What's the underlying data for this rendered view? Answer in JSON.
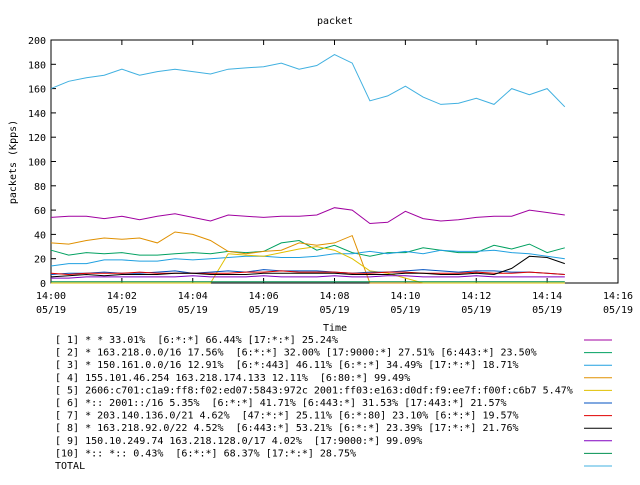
{
  "chart_data": {
    "type": "line",
    "title": "packet",
    "xlabel": "Time",
    "ylabel": "packets (Kpps)",
    "ylim": [
      0,
      200
    ],
    "yticks": [
      0,
      20,
      40,
      60,
      80,
      100,
      120,
      140,
      160,
      180,
      200
    ],
    "xlim": [
      "14:00",
      "14:16"
    ],
    "xticks": [
      {
        "time": "14:00",
        "date": "05/19"
      },
      {
        "time": "14:02",
        "date": "05/19"
      },
      {
        "time": "14:04",
        "date": "05/19"
      },
      {
        "time": "14:06",
        "date": "05/19"
      },
      {
        "time": "14:08",
        "date": "05/19"
      },
      {
        "time": "14:10",
        "date": "05/19"
      },
      {
        "time": "14:12",
        "date": "05/19"
      },
      {
        "time": "14:14",
        "date": "05/19"
      },
      {
        "time": "14:16",
        "date": "05/19"
      }
    ],
    "x": [
      "14:00:00",
      "14:00:30",
      "14:01:00",
      "14:01:30",
      "14:02:00",
      "14:02:30",
      "14:03:00",
      "14:03:30",
      "14:04:00",
      "14:04:30",
      "14:05:00",
      "14:05:30",
      "14:06:00",
      "14:06:30",
      "14:07:00",
      "14:07:30",
      "14:08:00",
      "14:08:30",
      "14:09:00",
      "14:09:30",
      "14:10:00",
      "14:10:30",
      "14:11:00",
      "14:11:30",
      "14:12:00",
      "14:12:30",
      "14:13:00",
      "14:13:30",
      "14:14:00",
      "14:14:30"
    ],
    "series": [
      {
        "name": "[ 1] * * 33.01%  [6:*:*] 66.44% [17:*:*] 25.24%",
        "color": "#a000a0",
        "values": [
          54,
          55,
          55,
          53,
          55,
          52,
          55,
          57,
          54,
          51,
          56,
          55,
          54,
          55,
          55,
          56,
          62,
          60,
          49,
          50,
          59,
          53,
          51,
          52,
          54,
          55,
          55,
          60,
          58,
          56
        ]
      },
      {
        "name": "[ 2] * 163.218.0.0/16 17.56%  [6:*:*] 32.00% [17:9000:*] 27.51% [6:443:*] 23.50%",
        "color": "#00a060",
        "values": [
          27,
          23,
          25,
          24,
          25,
          23,
          23,
          24,
          25,
          24,
          26,
          25,
          26,
          33,
          35,
          27,
          31,
          25,
          22,
          25,
          25,
          29,
          27,
          25,
          25,
          31,
          28,
          32,
          25,
          29
        ]
      },
      {
        "name": "[ 3] * 150.161.0.0/16 12.91%  [6:*:443] 46.11% [6:*:*] 34.49% [17:*:*] 18.71%",
        "color": "#20a0e0",
        "values": [
          14,
          16,
          16,
          19,
          19,
          18,
          18,
          20,
          19,
          20,
          21,
          22,
          22,
          21,
          21,
          22,
          24,
          24,
          26,
          24,
          26,
          24,
          27,
          26,
          26,
          27,
          25,
          24,
          22,
          20
        ]
      },
      {
        "name": "[ 4] 155.101.46.254 163.218.174.133 12.11%  [6:80:*] 99.49%",
        "color": "#e09000",
        "values": [
          33,
          32,
          35,
          37,
          36,
          37,
          33,
          42,
          40,
          35,
          26,
          24,
          26,
          27,
          33,
          31,
          33,
          39,
          0,
          0,
          0,
          0,
          0,
          0,
          0,
          0,
          0,
          0,
          0,
          0
        ]
      },
      {
        "name": "[ 5] 2606:c701:c1a9:ff8:f02:ed07:5843:972c 2001:ff03:e163:d0df:f9:ee7f:f00f:c6b7 5.47%",
        "color": "#e0c000",
        "values": [
          0,
          0,
          0,
          0,
          0,
          0,
          0,
          0,
          0,
          0,
          24,
          23,
          22,
          25,
          28,
          30,
          27,
          20,
          10,
          8,
          4,
          0,
          0,
          0,
          0,
          0,
          0,
          0,
          0,
          0
        ]
      },
      {
        "name": "[ 6] *:: 2001::/16 5.35%  [6:*:*] 41.71% [6:443:*] 31.53% [17:443:*] 21.57%",
        "color": "#0050c0",
        "values": [
          7,
          8,
          8,
          9,
          8,
          8,
          9,
          10,
          8,
          9,
          10,
          9,
          11,
          10,
          10,
          10,
          9,
          8,
          9,
          9,
          10,
          11,
          10,
          9,
          10,
          10,
          9,
          9,
          8,
          7
        ]
      },
      {
        "name": "[ 7] * 203.140.136.0/21 4.62%  [47:*:*] 25.11% [6:*:80] 23.10% [6:*:*] 19.57%",
        "color": "#e00000",
        "values": [
          8,
          7,
          8,
          8,
          8,
          9,
          8,
          8,
          8,
          8,
          8,
          9,
          9,
          10,
          9,
          9,
          9,
          8,
          8,
          9,
          9,
          8,
          8,
          8,
          9,
          8,
          8,
          9,
          8,
          7
        ]
      },
      {
        "name": "[ 8] * 163.218.92.0/22 4.52%  [6:443:*] 53.21% [6:*:*] 23.39% [17:*:*] 21.76%",
        "color": "#000000",
        "values": [
          5,
          6,
          7,
          6,
          7,
          7,
          7,
          8,
          8,
          7,
          7,
          7,
          8,
          8,
          8,
          8,
          8,
          7,
          7,
          7,
          8,
          8,
          7,
          7,
          8,
          7,
          12,
          22,
          21,
          16
        ]
      },
      {
        "name": "[ 9] 150.10.249.74 163.218.128.0/17 4.02%  [17:9000:*] 99.09%",
        "color": "#8000c0",
        "values": [
          4,
          4,
          5,
          5,
          5,
          5,
          5,
          5,
          6,
          5,
          5,
          5,
          6,
          5,
          5,
          5,
          6,
          5,
          5,
          6,
          6,
          5,
          5,
          5,
          6,
          5,
          5,
          5,
          5,
          5
        ]
      },
      {
        "name": "[10] *:: *:: 0.43%  [6:*:*] 68.37% [17:*:*] 28.75%",
        "color": "#009050",
        "values": [
          1,
          1,
          1,
          1,
          1,
          1,
          1,
          1,
          1,
          1,
          1,
          1,
          1,
          1,
          1,
          1,
          1,
          1,
          1,
          1,
          1,
          1,
          1,
          1,
          1,
          1,
          1,
          1,
          1,
          1
        ]
      },
      {
        "name": "TOTAL",
        "color": "#40b0e0",
        "values": [
          160,
          166,
          169,
          171,
          176,
          171,
          174,
          176,
          174,
          172,
          176,
          177,
          178,
          181,
          176,
          179,
          188,
          181,
          150,
          154,
          162,
          153,
          147,
          148,
          152,
          147,
          160,
          155,
          160,
          145
        ]
      }
    ],
    "grid": false,
    "legend_position": "bottom"
  }
}
